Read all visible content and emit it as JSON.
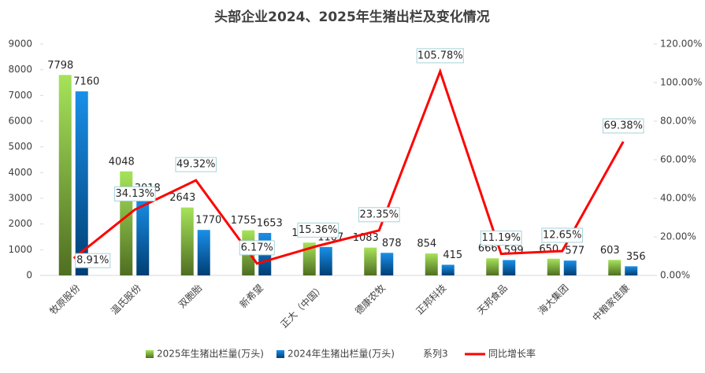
{
  "chart_data": {
    "type": "bar_line",
    "title": "头部企业2024、2025年生猪出栏及变化情况",
    "categories": [
      "牧原股份",
      "温氏股份",
      "双胞胎",
      "新希望",
      "正大（中国）",
      "德康农牧",
      "正邦科技",
      "天邦食品",
      "海大集团",
      "中粮家佳康"
    ],
    "series": [
      {
        "name": "2025年生猪出栏量(万头)",
        "color": "#92d050",
        "type": "bar",
        "values": [
          7798,
          4048,
          2643,
          1755,
          1277,
          1083,
          854,
          666,
          650,
          603
        ]
      },
      {
        "name": "2024年生猪出栏量(万头)",
        "color": "#0070c0",
        "type": "bar",
        "values": [
          7160,
          3018,
          1770,
          1653,
          1107,
          878,
          415,
          599,
          577,
          356
        ]
      },
      {
        "name": "系列3",
        "values": [
          null,
          null,
          null,
          null,
          null,
          null,
          null,
          null,
          null,
          null
        ]
      },
      {
        "name": "同比增长率",
        "color": "#ff0000",
        "type": "line",
        "axis": "y2",
        "values": [
          8.91,
          34.13,
          49.32,
          6.17,
          15.36,
          23.35,
          105.78,
          11.19,
          12.65,
          69.38
        ],
        "value_labels": [
          "8.91%",
          "34.13%",
          "49.32%",
          "6.17%",
          "15.36%",
          "23.35%",
          "105.78%",
          "11.19%",
          "12.65%",
          "69.38%"
        ]
      }
    ],
    "ylim": [
      0,
      9000
    ],
    "yticks": [
      0,
      1000,
      2000,
      3000,
      4000,
      5000,
      6000,
      7000,
      8000,
      9000
    ],
    "y2lim": [
      0,
      120
    ],
    "y2ticks": [
      {
        "value": 0,
        "label": "0.00%"
      },
      {
        "value": 20,
        "label": "20.00%"
      },
      {
        "value": 40,
        "label": "40.00%"
      },
      {
        "value": 60,
        "label": "60.00%"
      },
      {
        "value": 80,
        "label": "80.00%"
      },
      {
        "value": 100,
        "label": "100.00%"
      },
      {
        "value": 120,
        "label": "120.00%"
      }
    ]
  }
}
